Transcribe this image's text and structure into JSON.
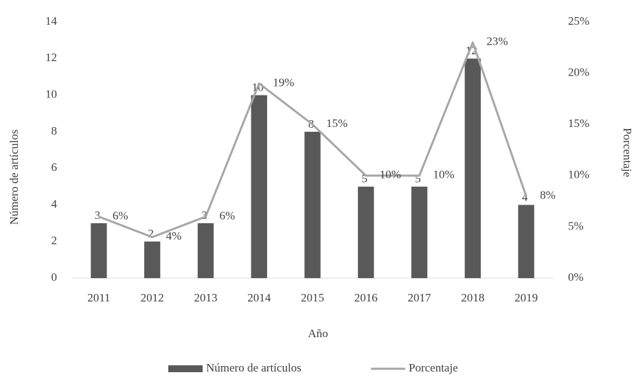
{
  "chart_data": {
    "type": "bar-line",
    "x_label": "Año",
    "y_label": "Número de artículos",
    "y2_label": "Porcentaje",
    "categories": [
      "2011",
      "2012",
      "2013",
      "2014",
      "2015",
      "2016",
      "2017",
      "2018",
      "2019"
    ],
    "series": [
      {
        "name": "Número de artículos",
        "type": "bar",
        "color": "#595959",
        "values": [
          3,
          2,
          3,
          10,
          8,
          5,
          5,
          12,
          4
        ]
      },
      {
        "name": "Porcentaje",
        "type": "line",
        "axis": "y2",
        "color": "#a6a6a6",
        "values": [
          6,
          4,
          6,
          19,
          15,
          10,
          10,
          23,
          8
        ],
        "value_labels": [
          "6%",
          "4%",
          "6%",
          "19%",
          "15%",
          "10%",
          "10%",
          "23%",
          "8%"
        ]
      }
    ],
    "ylim": [
      0,
      14
    ],
    "yticks": [
      0,
      2,
      4,
      6,
      8,
      10,
      12,
      14
    ],
    "y2lim": [
      0,
      25
    ],
    "y2ticks": [
      {
        "value": 0,
        "label": "0%"
      },
      {
        "value": 5,
        "label": "5%"
      },
      {
        "value": 10,
        "label": "10%"
      },
      {
        "value": 15,
        "label": "15%"
      },
      {
        "value": 20,
        "label": "20%"
      },
      {
        "value": 25,
        "label": "25%"
      }
    ],
    "grid": false,
    "legend": "bottom"
  }
}
